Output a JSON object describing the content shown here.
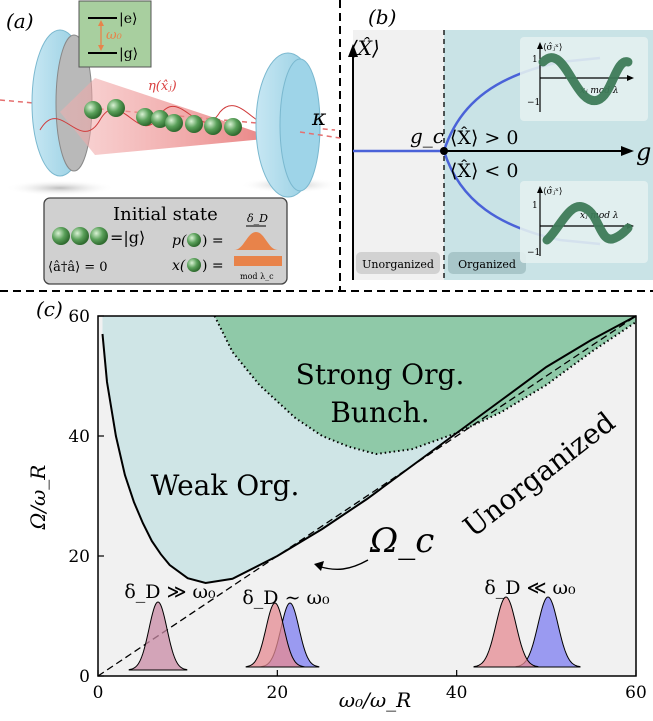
{
  "panels": {
    "a": {
      "label": "(a)",
      "level_excited": "|e⟩",
      "level_ground": "|g⟩",
      "level_gap": "ω₀",
      "coupling": "η(x̂ⱼ)",
      "decay": "κ",
      "inset_title": "Initial state",
      "inset_ground": "=|g⟩",
      "inset_photon": "⟨â†â⟩ = 0",
      "inset_momentum": "p(",
      "inset_momentum_close": ") =",
      "inset_position": "x(",
      "inset_position_close": ") =",
      "inset_doppler": "δ_D",
      "inset_mod": "mod λ_c"
    },
    "b": {
      "label": "(b)",
      "ylabel": "⟨X̂⟩",
      "xlabel": "g",
      "critical": "g_c",
      "upper_branch": "⟨X̂⟩ > 0",
      "lower_branch": "⟨X̂⟩ < 0",
      "region_left": "Unorganized",
      "region_right": "Organized",
      "inset_ylabel": "⟨σ̂ⱼˣ⟩",
      "inset_xlabel": "xⱼ mod λ",
      "inset_tick_top": "1",
      "inset_tick_bottom": "−1"
    },
    "c": {
      "label": "(c)",
      "xlabel": "ω₀/ω_R",
      "ylabel": "Ω/ω_R",
      "region_strong_line1": "Strong Org.",
      "region_strong_line2": "Bunch.",
      "region_weak": "Weak Org.",
      "region_unorganized": "Unorganized",
      "boundary_label": "Ω_c",
      "regime_1": "δ_D ≫ ω₀",
      "regime_2": "δ_D ∼ ω₀",
      "regime_3": "δ_D ≪ ω₀"
    }
  },
  "colors": {
    "cavity_mirror": "#a9d8ea",
    "atom": "#4e9a4e",
    "laser": "#e07070",
    "organized_bg": "#c9e3e6",
    "strong_org": "#8fc9a8",
    "weak_org": "#cfe5e6",
    "unorganized_bg": "#f1f1f1",
    "bifurcation": "#4a62d8",
    "sigma_curve": "#3d7a57",
    "pulse_red": "#e48a92",
    "pulse_blue": "#7c7cf0",
    "orange": "#e8834a"
  },
  "chart_data": {
    "type": "line",
    "xlabel": "ω₀/ω_R",
    "ylabel": "Ω/ω_R",
    "xlim": [
      0,
      60
    ],
    "ylim": [
      0,
      60
    ],
    "xticks": [
      0,
      20,
      40,
      60
    ],
    "yticks": [
      0,
      20,
      40,
      60
    ],
    "series": [
      {
        "name": "Ω_c",
        "style": "solid",
        "x": [
          0.5,
          1,
          2,
          3,
          4,
          5,
          6,
          7,
          8,
          10,
          12,
          15,
          20,
          25,
          30,
          35,
          40,
          45,
          50,
          55,
          60
        ],
        "y": [
          57,
          49,
          40,
          33.5,
          29,
          25.5,
          22.5,
          20.3,
          18.5,
          16.3,
          15.5,
          16.2,
          20,
          24.5,
          29.5,
          35,
          40.5,
          46,
          51.5,
          56,
          60
        ]
      },
      {
        "name": "",
        "style": "dashed",
        "x": [
          0,
          60
        ],
        "y": [
          0,
          60
        ]
      },
      {
        "name": "",
        "style": "dotted",
        "x": [
          13,
          15,
          18,
          22,
          25,
          28,
          31,
          35,
          40,
          45,
          50,
          55,
          60
        ],
        "y": [
          60,
          54,
          48.5,
          43,
          40,
          38.2,
          37,
          37.8,
          40.5,
          44,
          48.5,
          54,
          59
        ]
      }
    ]
  }
}
